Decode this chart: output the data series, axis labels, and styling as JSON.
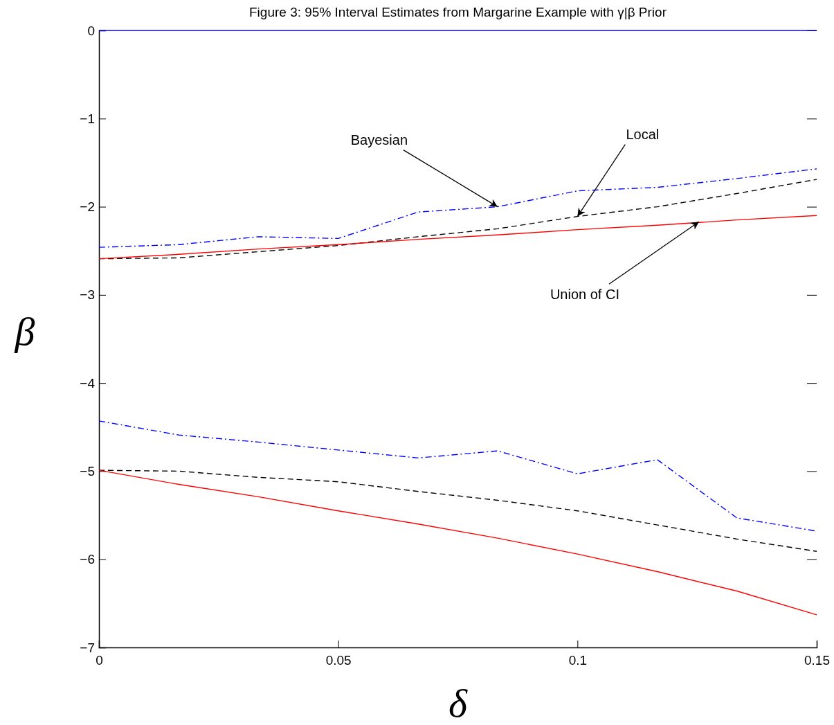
{
  "chart_data": {
    "type": "line",
    "title": "Figure 3:  95% Interval Estimates from Margarine Example with γ|β Prior",
    "xlabel": "δ",
    "ylabel": "β",
    "x": [
      0,
      0.0167,
      0.0333,
      0.05,
      0.0667,
      0.0833,
      0.1,
      0.1167,
      0.1333,
      0.15
    ],
    "xlim": [
      0,
      0.15
    ],
    "xticks": [
      0,
      0.05,
      0.1,
      0.15
    ],
    "ylim": [
      -7,
      0
    ],
    "yticks": [
      -7,
      -6,
      -5,
      -4,
      -3,
      -2,
      -1,
      0
    ],
    "grid": false,
    "marker": "none",
    "series": [
      {
        "color": "#0000ff",
        "line_style": "dashdot",
        "values": [
          -2.46,
          -2.43,
          -2.34,
          -2.36,
          -2.06,
          -2.0,
          -1.82,
          -1.78,
          -1.68,
          -1.57
        ]
      },
      {
        "color": "#000000",
        "line_style": "dashed",
        "values": [
          -2.59,
          -2.58,
          -2.51,
          -2.44,
          -2.34,
          -2.25,
          -2.11,
          -2.0,
          -1.85,
          -1.69
        ]
      },
      {
        "color": "#ff0000",
        "line_style": "solid",
        "values": [
          -2.59,
          -2.54,
          -2.48,
          -2.43,
          -2.37,
          -2.32,
          -2.26,
          -2.21,
          -2.15,
          -2.1
        ]
      },
      {
        "color": "#0000ff",
        "line_style": "dashdot",
        "values": [
          -4.43,
          -4.59,
          -4.67,
          -4.76,
          -4.85,
          -4.77,
          -5.03,
          -4.87,
          -5.53,
          -5.68
        ]
      },
      {
        "color": "#000000",
        "line_style": "dashed",
        "values": [
          -4.99,
          -5.0,
          -5.07,
          -5.12,
          -5.23,
          -5.33,
          -5.45,
          -5.61,
          -5.77,
          -5.91
        ]
      },
      {
        "color": "#ff0000",
        "line_style": "solid",
        "values": [
          -4.99,
          -5.15,
          -5.29,
          -5.45,
          -5.6,
          -5.76,
          -5.94,
          -6.14,
          -6.36,
          -6.63
        ]
      }
    ],
    "ref_lines": [
      {
        "axis": "y",
        "value": 0,
        "color": "#0000ff",
        "line_style": "solid"
      }
    ],
    "annotations": [
      {
        "text": "Bayesian",
        "x": 0.0833,
        "y": -2.0
      },
      {
        "text": "Local",
        "x": 0.1,
        "y": -2.11
      },
      {
        "text": "Union of CI",
        "x": 0.1254,
        "y": -2.17
      }
    ]
  }
}
